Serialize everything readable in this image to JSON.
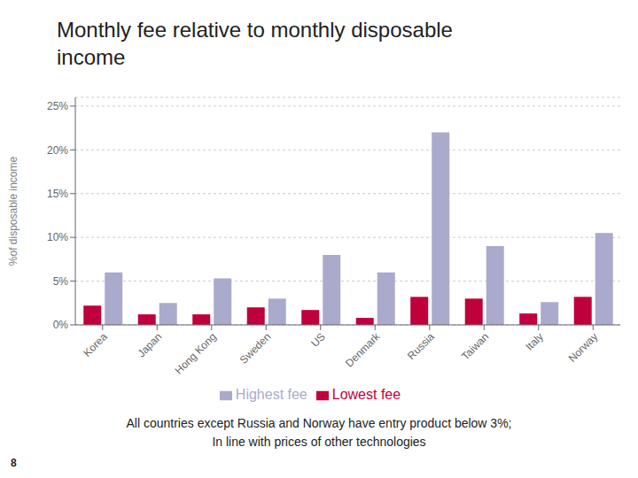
{
  "chart_data": {
    "type": "bar",
    "title": "Monthly fee relative to monthly disposable\nincome",
    "subtitle": "All countries except Russia and Norway have entry product below 3%;\nIn line with prices of other technologies",
    "annotations": [
      "8"
    ],
    "ylabel": "%of disposable income",
    "categories": [
      "Korea",
      "Japan",
      "Hong Kong",
      "Sweden",
      "US",
      "Denmark",
      "Russia",
      "Taiwan",
      "Italy",
      "Norway"
    ],
    "series": [
      {
        "name": "Lowest fee",
        "color": "#c0003c",
        "values": [
          0.022,
          0.012,
          0.012,
          0.02,
          0.017,
          0.008,
          0.032,
          0.03,
          0.013,
          0.032
        ]
      },
      {
        "name": "Highest fee",
        "color": "#aaaacc",
        "values": [
          0.06,
          0.025,
          0.053,
          0.03,
          0.08,
          0.06,
          0.22,
          0.09,
          0.026,
          0.105
        ]
      }
    ],
    "ylim": [
      0,
      0.26
    ],
    "yticks": [
      {
        "value": 0,
        "label": "0%"
      },
      {
        "value": 0.05,
        "label": "5%"
      },
      {
        "value": 0.1,
        "label": "10%"
      },
      {
        "value": 0.15,
        "label": "15%"
      },
      {
        "value": 0.2,
        "label": "20%"
      },
      {
        "value": 0.25,
        "label": "25%"
      }
    ],
    "grid": true,
    "legend": "bottom"
  }
}
